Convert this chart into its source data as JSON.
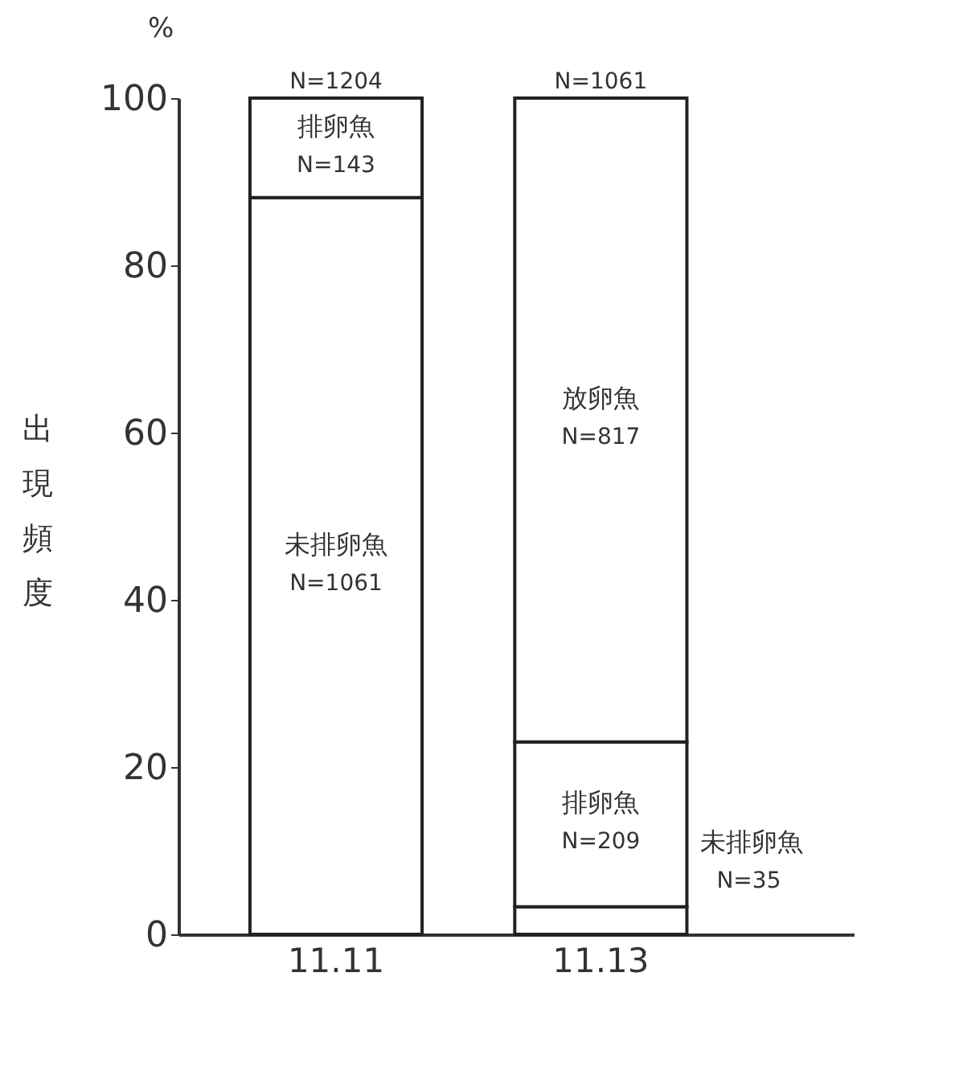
{
  "chart_data": {
    "type": "bar",
    "stacked": true,
    "ylabel": "出現頻度",
    "annotations": [
      "%",
      {
        "text": "N=1204",
        "x": "11.11",
        "y": 100
      },
      {
        "text": "N=1061",
        "x": "11.13",
        "y": 100
      },
      "N=1061",
      "N=35",
      "N=143",
      "N=209",
      "N=817"
    ],
    "categories": [
      "11.11",
      "11.13"
    ],
    "series": [
      {
        "name": "未排卵魚",
        "color": "#ffffff",
        "values": [
          88.1,
          3.3
        ]
      },
      {
        "name": "排卵魚",
        "color": "#ffffff",
        "values": [
          11.9,
          19.7
        ]
      },
      {
        "name": "放卵魚",
        "color": "#ffffff",
        "values": [
          null,
          77.0
        ]
      }
    ],
    "ylim": [
      0,
      100
    ],
    "yticks": [
      0,
      20,
      40,
      60,
      80,
      100
    ],
    "grid": false,
    "legend": false
  }
}
